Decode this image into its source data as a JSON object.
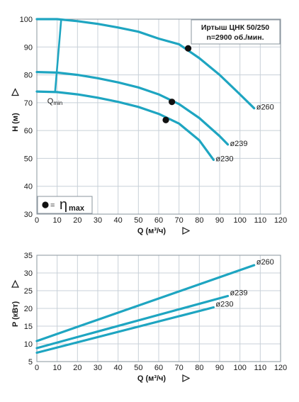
{
  "head_chart": {
    "info_box": {
      "line1": "Иртыш ЦНК 50/250",
      "line2": "n=2900 об./мин."
    },
    "legend": {
      "marker_label": "= ",
      "eta": "η",
      "sub": "max"
    },
    "qmin_label": {
      "main": "Q",
      "sub": "min"
    }
  },
  "chart_data": [
    {
      "type": "line",
      "title": "",
      "xlabel": "Q (м³/ч)",
      "ylabel": "H (м)",
      "xlim": [
        0,
        120
      ],
      "ylim": [
        30,
        100
      ],
      "xticks": [
        "0",
        "10",
        "20",
        "30",
        "40",
        "50",
        "60",
        "70",
        "80",
        "90",
        "100",
        "110",
        "120"
      ],
      "yticks": [
        "30",
        "40",
        "50",
        "60",
        "70",
        "80",
        "90",
        "100"
      ],
      "grid": true,
      "series": [
        {
          "name": "ø260",
          "x": [
            0,
            10,
            20,
            30,
            40,
            50,
            60,
            70,
            80,
            90,
            100,
            107
          ],
          "y": [
            100,
            100,
            99.3,
            98.3,
            97,
            95.5,
            93,
            91,
            86,
            80,
            73,
            68
          ]
        },
        {
          "name": "ø239",
          "x": [
            0,
            10,
            20,
            30,
            40,
            50,
            60,
            70,
            80,
            90,
            94
          ],
          "y": [
            81,
            80.8,
            80,
            78.8,
            77.3,
            75.5,
            73,
            69.5,
            64.5,
            58,
            55
          ]
        },
        {
          "name": "ø230",
          "x": [
            0,
            10,
            20,
            30,
            40,
            50,
            60,
            70,
            80,
            87
          ],
          "y": [
            74,
            73.8,
            73,
            71.8,
            70.3,
            68.5,
            66,
            62.5,
            56.5,
            49.5
          ]
        }
      ],
      "eta_max_points": [
        {
          "x": 74.5,
          "y": 89.5
        },
        {
          "x": 66.5,
          "y": 70.3
        },
        {
          "x": 63.5,
          "y": 63.8
        }
      ],
      "qmin_line": {
        "top": {
          "x": 12,
          "y": 100
        },
        "bottom": {
          "x": 9,
          "y": 74
        }
      },
      "colors": {
        "curve": "#1ea5c1",
        "grid": "#c8d0d8",
        "point": "#111111"
      }
    },
    {
      "type": "line",
      "title": "",
      "xlabel": "Q (м³/ч)",
      "ylabel": "P (кВт)",
      "xlim": [
        0,
        120
      ],
      "ylim": [
        5,
        35
      ],
      "xticks": [
        "0",
        "10",
        "20",
        "30",
        "40",
        "50",
        "60",
        "70",
        "80",
        "90",
        "100",
        "110",
        "120"
      ],
      "yticks": [
        "5",
        "10",
        "15",
        "20",
        "25",
        "30",
        "35"
      ],
      "grid": true,
      "series": [
        {
          "name": "ø260",
          "x": [
            0,
            107
          ],
          "y": [
            10.8,
            32.2
          ]
        },
        {
          "name": "ø239",
          "x": [
            0,
            94
          ],
          "y": [
            8.8,
            23.5
          ]
        },
        {
          "name": "ø230",
          "x": [
            0,
            87
          ],
          "y": [
            7.5,
            20.3
          ]
        }
      ],
      "colors": {
        "curve": "#1ea5c1",
        "grid": "#c8d0d8"
      }
    }
  ]
}
